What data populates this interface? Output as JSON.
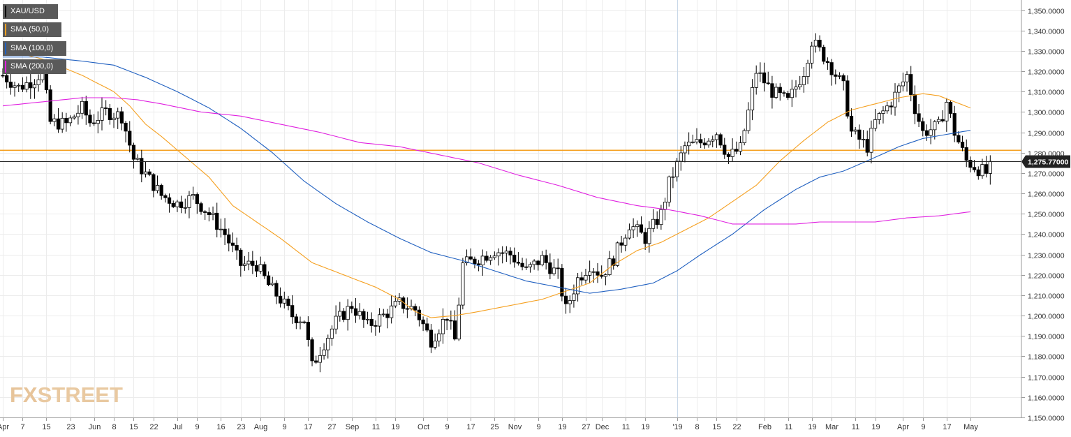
{
  "legend": {
    "items": [
      {
        "label": "XAU/USD",
        "color": "#000000"
      },
      {
        "label": "SMA (50,0)",
        "color": "#f5a020"
      },
      {
        "label": "SMA (100,0)",
        "color": "#2060c0"
      },
      {
        "label": "SMA (200,0)",
        "color": "#e020e0"
      }
    ]
  },
  "watermark": {
    "fx": "FX",
    "street": "STREET"
  },
  "chart_data": {
    "type": "candlestick",
    "title": "",
    "symbol": "XAU/USD",
    "ylim": [
      1150,
      1355
    ],
    "yticks": [
      "1,150.0000",
      "1,160.0000",
      "1,170.0000",
      "1,180.0000",
      "1,190.0000",
      "1,200.0000",
      "1,210.0000",
      "1,220.0000",
      "1,230.0000",
      "1,240.0000",
      "1,250.0000",
      "1,260.0000",
      "1,270.0000",
      "1,280.0000",
      "1,290.0000",
      "1,300.0000",
      "1,310.0000",
      "1,320.0000",
      "1,330.0000",
      "1,340.0000",
      "1,350.0000"
    ],
    "ytick_values": [
      1150,
      1160,
      1170,
      1180,
      1190,
      1200,
      1210,
      1220,
      1230,
      1240,
      1250,
      1260,
      1270,
      1280,
      1290,
      1300,
      1310,
      1320,
      1330,
      1340,
      1350
    ],
    "xticks": [
      "Apr",
      "7",
      "15",
      "23",
      "Jun",
      "8",
      "15",
      "22",
      "Jul",
      "9",
      "16",
      "23",
      "Aug",
      "9",
      "17",
      "27",
      "Sep",
      "11",
      "19",
      "Oct",
      "9",
      "17",
      "25",
      "Nov",
      "9",
      "19",
      "27",
      "Dec",
      "11",
      "19",
      "'19",
      "8",
      "15",
      "22",
      "Feb",
      "11",
      "19",
      "Mar",
      "11",
      "19",
      "Apr",
      "9",
      "17",
      "May"
    ],
    "xtick_index": [
      0,
      5,
      11,
      17,
      23,
      28,
      33,
      38,
      44,
      49,
      55,
      60,
      65,
      71,
      77,
      83,
      88,
      94,
      99,
      106,
      112,
      118,
      124,
      129,
      135,
      141,
      147,
      151,
      157,
      162,
      170,
      175,
      180,
      185,
      192,
      198,
      204,
      209,
      215,
      220,
      227,
      232,
      238,
      244
    ],
    "grid": true,
    "current_price": {
      "value": 1275.77,
      "label": "1,275.77000"
    },
    "horizontal_level": {
      "value": 1281.2,
      "color": "#f5a020"
    },
    "series": [
      {
        "name": "SMA (50,0)",
        "color": "#f5a020",
        "points": [
          [
            0,
            1331
          ],
          [
            10,
            1326
          ],
          [
            20,
            1318
          ],
          [
            28,
            1310
          ],
          [
            32,
            1303
          ],
          [
            36,
            1294
          ],
          [
            40,
            1288
          ],
          [
            46,
            1278
          ],
          [
            52,
            1268
          ],
          [
            58,
            1254
          ],
          [
            64,
            1246
          ],
          [
            70,
            1238
          ],
          [
            78,
            1226
          ],
          [
            86,
            1220
          ],
          [
            94,
            1214
          ],
          [
            100,
            1208
          ],
          [
            104,
            1202
          ],
          [
            108,
            1199
          ],
          [
            114,
            1200
          ],
          [
            120,
            1202
          ],
          [
            128,
            1205
          ],
          [
            136,
            1208
          ],
          [
            142,
            1212
          ],
          [
            148,
            1216
          ],
          [
            154,
            1225
          ],
          [
            160,
            1232
          ],
          [
            166,
            1236
          ],
          [
            172,
            1242
          ],
          [
            178,
            1248
          ],
          [
            184,
            1256
          ],
          [
            190,
            1264
          ],
          [
            196,
            1276
          ],
          [
            202,
            1286
          ],
          [
            208,
            1295
          ],
          [
            214,
            1301
          ],
          [
            220,
            1304
          ],
          [
            226,
            1307
          ],
          [
            232,
            1309
          ],
          [
            236,
            1308
          ],
          [
            240,
            1305
          ],
          [
            244,
            1302
          ]
        ]
      },
      {
        "name": "SMA (100,0)",
        "color": "#2060c0",
        "points": [
          [
            0,
            1327
          ],
          [
            10,
            1327
          ],
          [
            20,
            1325
          ],
          [
            28,
            1323
          ],
          [
            36,
            1317
          ],
          [
            44,
            1310
          ],
          [
            52,
            1302
          ],
          [
            60,
            1292
          ],
          [
            68,
            1280
          ],
          [
            76,
            1266
          ],
          [
            84,
            1255
          ],
          [
            92,
            1246
          ],
          [
            100,
            1238
          ],
          [
            108,
            1231
          ],
          [
            116,
            1227
          ],
          [
            124,
            1222
          ],
          [
            132,
            1217
          ],
          [
            140,
            1214
          ],
          [
            148,
            1211
          ],
          [
            156,
            1213
          ],
          [
            164,
            1216
          ],
          [
            170,
            1222
          ],
          [
            176,
            1230
          ],
          [
            184,
            1240
          ],
          [
            192,
            1252
          ],
          [
            200,
            1262
          ],
          [
            206,
            1268
          ],
          [
            212,
            1271
          ],
          [
            218,
            1276
          ],
          [
            226,
            1283
          ],
          [
            232,
            1287
          ],
          [
            238,
            1289
          ],
          [
            244,
            1291
          ]
        ]
      },
      {
        "name": "SMA (200,0)",
        "color": "#e020e0",
        "points": [
          [
            0,
            1303
          ],
          [
            10,
            1305
          ],
          [
            20,
            1307
          ],
          [
            28,
            1307
          ],
          [
            34,
            1306
          ],
          [
            40,
            1304
          ],
          [
            50,
            1300
          ],
          [
            60,
            1298
          ],
          [
            70,
            1294
          ],
          [
            80,
            1290
          ],
          [
            90,
            1285
          ],
          [
            100,
            1283
          ],
          [
            110,
            1279
          ],
          [
            120,
            1275
          ],
          [
            130,
            1269
          ],
          [
            140,
            1264
          ],
          [
            150,
            1258
          ],
          [
            160,
            1254
          ],
          [
            168,
            1252
          ],
          [
            176,
            1249
          ],
          [
            184,
            1245
          ],
          [
            192,
            1245
          ],
          [
            200,
            1245
          ],
          [
            206,
            1246
          ],
          [
            212,
            1246
          ],
          [
            220,
            1246
          ],
          [
            228,
            1248
          ],
          [
            236,
            1249
          ],
          [
            244,
            1251
          ]
        ]
      }
    ],
    "price_keypoints": [
      [
        0,
        1318
      ],
      [
        4,
        1312
      ],
      [
        8,
        1316
      ],
      [
        10,
        1320
      ],
      [
        12,
        1295
      ],
      [
        16,
        1294
      ],
      [
        20,
        1302
      ],
      [
        22,
        1295
      ],
      [
        26,
        1300
      ],
      [
        30,
        1298
      ],
      [
        33,
        1277
      ],
      [
        37,
        1267
      ],
      [
        40,
        1259
      ],
      [
        44,
        1255
      ],
      [
        48,
        1258
      ],
      [
        52,
        1250
      ],
      [
        56,
        1240
      ],
      [
        60,
        1225
      ],
      [
        64,
        1225
      ],
      [
        67,
        1215
      ],
      [
        70,
        1208
      ],
      [
        73,
        1200
      ],
      [
        76,
        1198
      ],
      [
        78,
        1175
      ],
      [
        80,
        1183
      ],
      [
        84,
        1197
      ],
      [
        88,
        1205
      ],
      [
        92,
        1195
      ],
      [
        96,
        1200
      ],
      [
        100,
        1206
      ],
      [
        104,
        1203
      ],
      [
        108,
        1188
      ],
      [
        112,
        1200
      ],
      [
        114,
        1188
      ],
      [
        116,
        1225
      ],
      [
        120,
        1228
      ],
      [
        124,
        1232
      ],
      [
        128,
        1230
      ],
      [
        132,
        1222
      ],
      [
        136,
        1228
      ],
      [
        140,
        1220
      ],
      [
        142,
        1203
      ],
      [
        145,
        1218
      ],
      [
        148,
        1225
      ],
      [
        151,
        1220
      ],
      [
        154,
        1228
      ],
      [
        158,
        1245
      ],
      [
        162,
        1238
      ],
      [
        166,
        1250
      ],
      [
        168,
        1265
      ],
      [
        172,
        1283
      ],
      [
        176,
        1285
      ],
      [
        180,
        1290
      ],
      [
        183,
        1278
      ],
      [
        186,
        1282
      ],
      [
        188,
        1300
      ],
      [
        190,
        1320
      ],
      [
        194,
        1310
      ],
      [
        198,
        1305
      ],
      [
        202,
        1320
      ],
      [
        204,
        1335
      ],
      [
        208,
        1325
      ],
      [
        212,
        1312
      ],
      [
        214,
        1290
      ],
      [
        218,
        1283
      ],
      [
        220,
        1295
      ],
      [
        224,
        1305
      ],
      [
        228,
        1318
      ],
      [
        230,
        1302
      ],
      [
        232,
        1290
      ],
      [
        236,
        1293
      ],
      [
        238,
        1305
      ],
      [
        240,
        1290
      ],
      [
        243,
        1276
      ],
      [
        246,
        1272
      ],
      [
        248,
        1270
      ],
      [
        250,
        1276
      ]
    ]
  }
}
